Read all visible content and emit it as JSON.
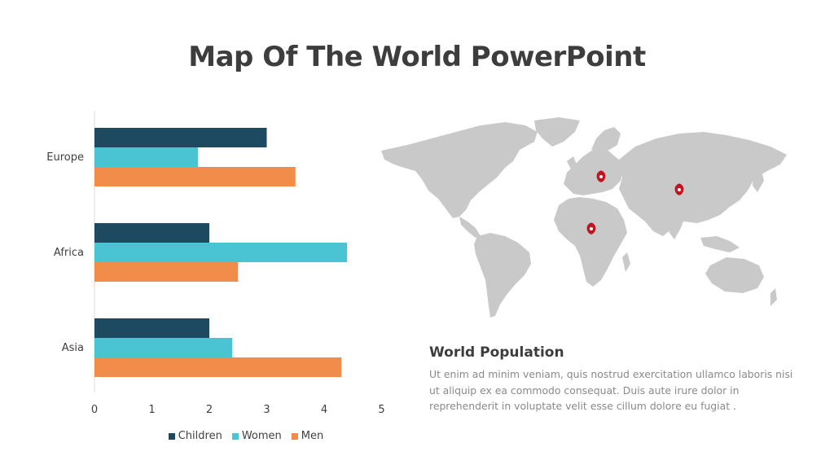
{
  "title": "Map Of The World PowerPoint",
  "colors": {
    "children": "#1e4a61",
    "women": "#4ac3d3",
    "men": "#f28c4b",
    "map_land": "#c9c9c9",
    "pin": "#c0161f"
  },
  "chart_data": {
    "type": "bar",
    "orientation": "horizontal",
    "categories": [
      "Europe",
      "Africa",
      "Asia"
    ],
    "series": [
      {
        "name": "Children",
        "values": [
          3,
          2,
          2
        ]
      },
      {
        "name": "Women",
        "values": [
          1.8,
          4.4,
          2.4
        ]
      },
      {
        "name": "Men",
        "values": [
          3.5,
          2.5,
          4.3
        ]
      }
    ],
    "xlim": [
      0,
      5
    ],
    "xticks": [
      "0",
      "1",
      "2",
      "3",
      "4",
      "5"
    ],
    "grid": false,
    "legend_position": "bottom"
  },
  "map": {
    "icon": "world-map",
    "pins": [
      "map-pin-icon",
      "map-pin-icon",
      "map-pin-icon"
    ]
  },
  "info": {
    "heading": "World Population",
    "body": "Ut enim ad minim veniam, quis nostrud exercitation ullamco laboris nisi ut aliquip ex ea commodo consequat. Duis aute irure dolor in reprehenderit in voluptate velit esse cillum dolore eu fugiat ."
  }
}
